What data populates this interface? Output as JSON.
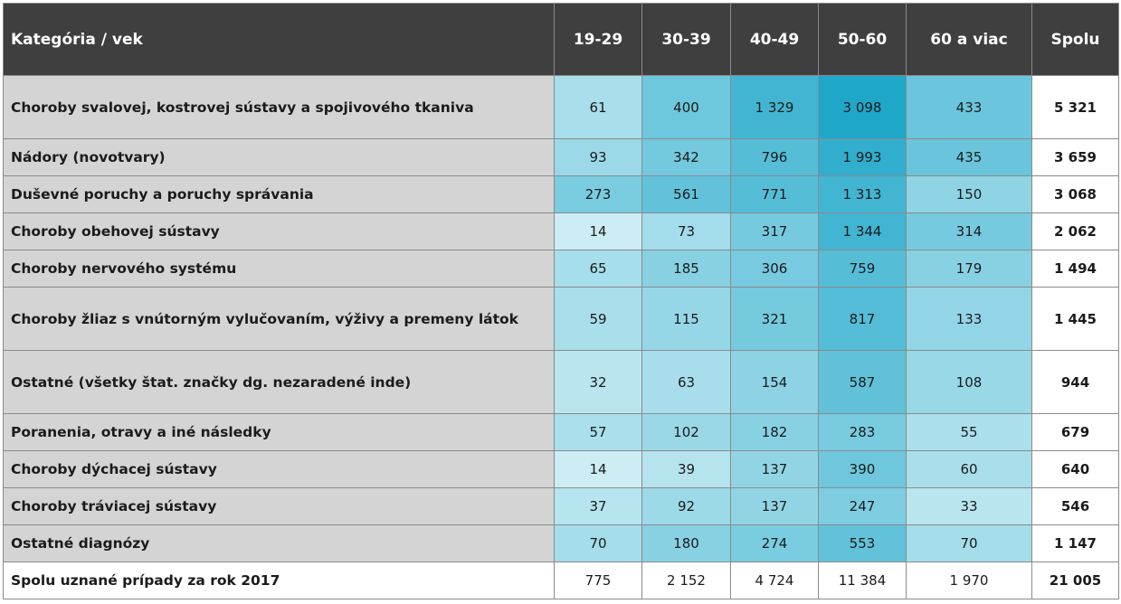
{
  "chart_data": {
    "type": "table",
    "header": {
      "category": "Kategória / vek",
      "age_groups": [
        "19-29",
        "30-39",
        "40-49",
        "50-60",
        "60 a viac"
      ],
      "total": "Spolu"
    },
    "rows": [
      {
        "label": "Choroby svalovej, kostrovej sústavy a spojivového tkaniva",
        "values": [
          "61",
          "400",
          "1 329",
          "3 098",
          "433"
        ],
        "total": "5 321",
        "num": [
          61,
          400,
          1329,
          3098,
          433
        ]
      },
      {
        "label": "Nádory (novotvary)",
        "values": [
          "93",
          "342",
          "796",
          "1 993",
          "435"
        ],
        "total": "3 659",
        "num": [
          93,
          342,
          796,
          1993,
          435
        ]
      },
      {
        "label": "Duševné poruchy a poruchy správania",
        "values": [
          "273",
          "561",
          "771",
          "1 313",
          "150"
        ],
        "total": "3 068",
        "num": [
          273,
          561,
          771,
          1313,
          150
        ]
      },
      {
        "label": "Choroby obehovej sústavy",
        "values": [
          "14",
          "73",
          "317",
          "1 344",
          "314"
        ],
        "total": "2 062",
        "num": [
          14,
          73,
          317,
          1344,
          314
        ]
      },
      {
        "label": "Choroby nervového systému",
        "values": [
          "65",
          "185",
          "306",
          "759",
          "179"
        ],
        "total": "1 494",
        "num": [
          65,
          185,
          306,
          759,
          179
        ]
      },
      {
        "label": "Choroby žliaz s vnútorným vylučovaním, výživy a premeny látok",
        "values": [
          "59",
          "115",
          "321",
          "817",
          "133"
        ],
        "total": "1 445",
        "num": [
          59,
          115,
          321,
          817,
          133
        ]
      },
      {
        "label": "Ostatné (všetky štat. značky dg. nezaradené inde)",
        "values": [
          "32",
          "63",
          "154",
          "587",
          "108"
        ],
        "total": "944",
        "num": [
          32,
          63,
          154,
          587,
          108
        ]
      },
      {
        "label": "Poranenia, otravy a iné následky",
        "values": [
          "57",
          "102",
          "182",
          "283",
          "55"
        ],
        "total": "679",
        "num": [
          57,
          102,
          182,
          283,
          55
        ]
      },
      {
        "label": "Choroby dýchacej sústavy",
        "values": [
          "14",
          "39",
          "137",
          "390",
          "60"
        ],
        "total": "640",
        "num": [
          14,
          39,
          137,
          390,
          60
        ]
      },
      {
        "label": "Choroby tráviacej sústavy",
        "values": [
          "37",
          "92",
          "137",
          "247",
          "33"
        ],
        "total": "546",
        "num": [
          37,
          92,
          137,
          247,
          33
        ]
      },
      {
        "label": "Ostatné diagnózy",
        "values": [
          "70",
          "180",
          "274",
          "553",
          "70"
        ],
        "total": "1 147",
        "num": [
          70,
          180,
          274,
          553,
          70
        ]
      }
    ],
    "summary": {
      "label": "Spolu uznané prípady za rok 2017",
      "values": [
        "775",
        "2 152",
        "4 724",
        "11 384",
        "1 970"
      ],
      "total": "21 005"
    },
    "colors": {
      "header_bg": "#3f3f3f",
      "label_bg": "#d4d4d4",
      "scale_low": "#f0fbfd",
      "scale_high": "#1fa7c9"
    }
  }
}
